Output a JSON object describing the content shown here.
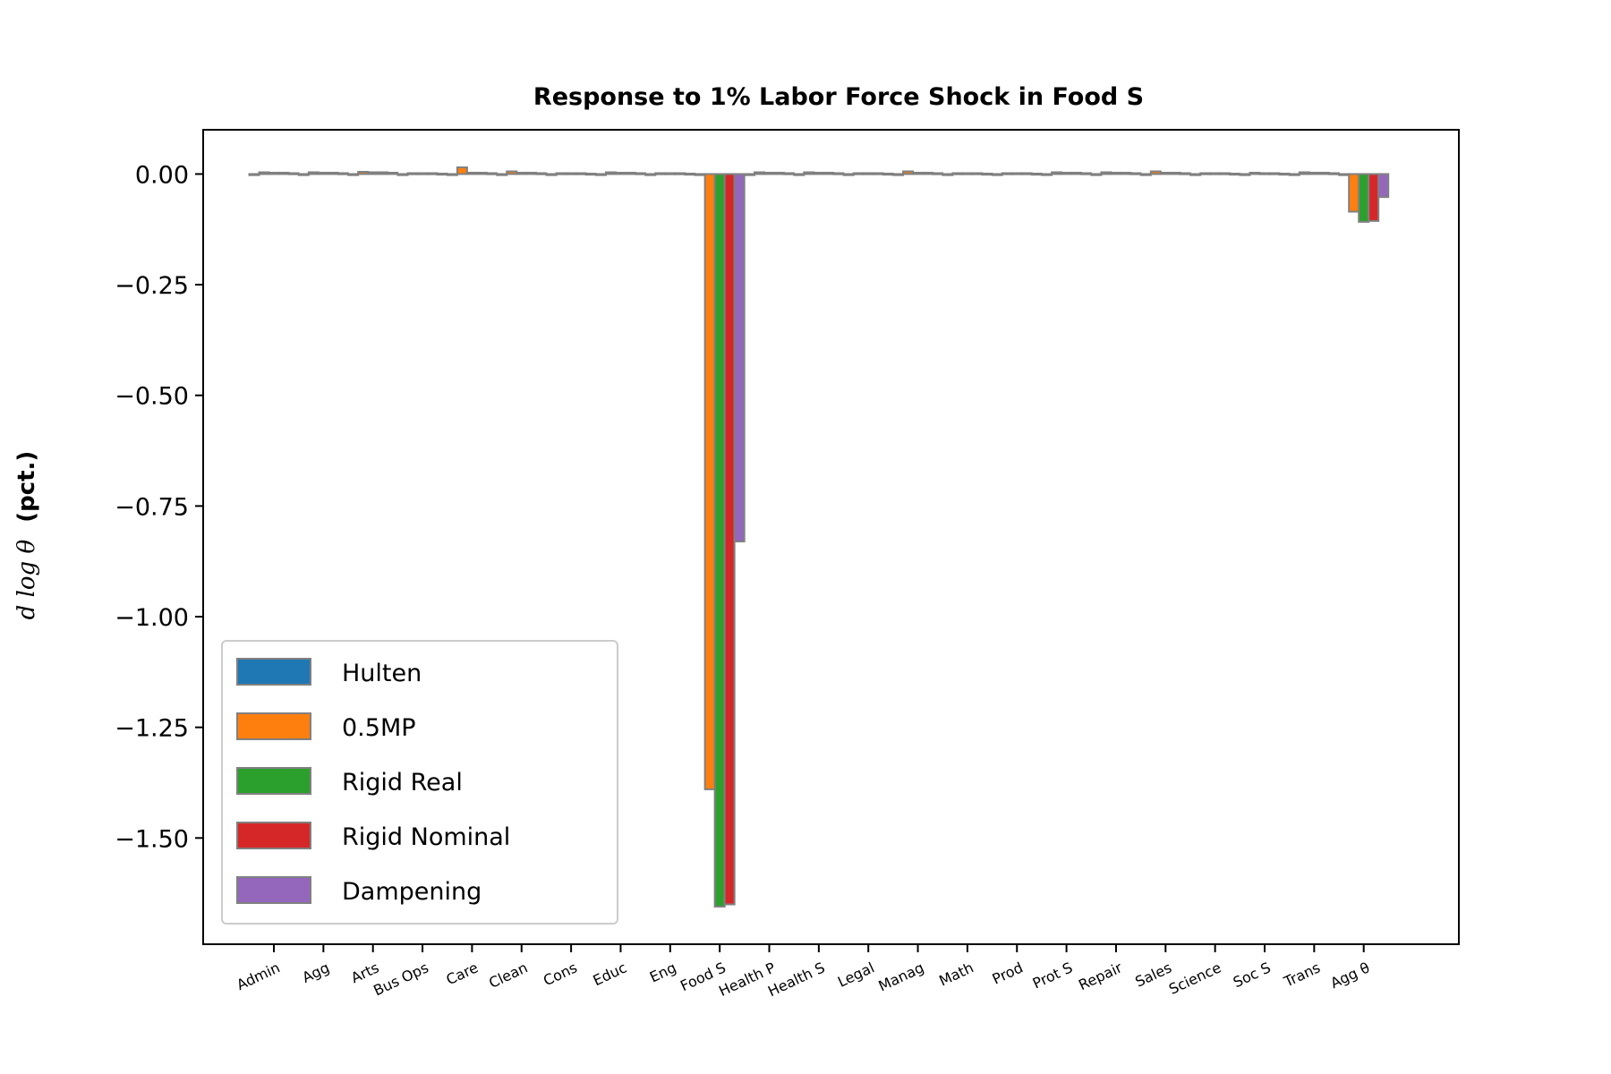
{
  "chart_data": {
    "type": "bar",
    "title": "Response to 1% Labor Force Shock in Food S",
    "ylabel": "d log θ",
    "ylabel_unit": "(pct.)",
    "xlabel": "",
    "ylim": [
      -1.74,
      0.1
    ],
    "yticks": [
      0.0,
      -0.25,
      -0.5,
      -0.75,
      -1.0,
      -1.25,
      -1.5
    ],
    "ytick_labels": [
      "0.00",
      "−0.25",
      "−0.50",
      "−0.75",
      "−1.00",
      "−1.25",
      "−1.50"
    ],
    "grid": false,
    "legend_position": "lower-left",
    "bar_edge_color": "#808080",
    "categories": [
      "Admin",
      "Agg",
      "Arts",
      "Bus Ops",
      "Care",
      "Clean",
      "Cons",
      "Educ",
      "Eng",
      "Food S",
      "Health P",
      "Health S",
      "Legal",
      "Manag",
      "Math",
      "Prod",
      "Prot S",
      "Repair",
      "Sales",
      "Science",
      "Soc S",
      "Trans",
      "Agg θ"
    ],
    "series": [
      {
        "name": "Hulten",
        "color": "#1f77b4",
        "values": [
          0,
          0,
          0,
          0,
          0,
          0,
          0,
          0,
          0,
          0,
          0,
          0,
          0,
          0,
          0,
          0,
          0,
          0,
          0,
          0,
          0,
          0,
          0
        ]
      },
      {
        "name": "0.5MP",
        "color": "#ff7f0e",
        "values": [
          0.004,
          0.004,
          0.005,
          0.002,
          0.015,
          0.006,
          0.002,
          0.004,
          0.002,
          -1.39,
          0.004,
          0.004,
          0.002,
          0.006,
          0.002,
          0.002,
          0.004,
          0.004,
          0.006,
          0.002,
          0.003,
          0.004,
          -0.085
        ]
      },
      {
        "name": "Rigid Real",
        "color": "#2ca02c",
        "values": [
          0.003,
          0.003,
          0.004,
          0.002,
          0.003,
          0.003,
          0.002,
          0.003,
          0.002,
          -1.655,
          0.003,
          0.003,
          0.002,
          0.003,
          0.002,
          0.002,
          0.003,
          0.003,
          0.003,
          0.002,
          0.002,
          0.003,
          -0.108
        ]
      },
      {
        "name": "Rigid Nominal",
        "color": "#d62728",
        "values": [
          0.003,
          0.003,
          0.004,
          0.002,
          0.003,
          0.003,
          0.002,
          0.003,
          0.002,
          -1.65,
          0.003,
          0.003,
          0.002,
          0.003,
          0.002,
          0.002,
          0.003,
          0.003,
          0.003,
          0.002,
          0.002,
          0.003,
          -0.106
        ]
      },
      {
        "name": "Dampening",
        "color": "#9467bd",
        "values": [
          0.002,
          0.002,
          0.003,
          0.001,
          0.002,
          0.002,
          0.001,
          0.002,
          0.001,
          -0.83,
          0.002,
          0.002,
          0.001,
          0.002,
          0.001,
          0.001,
          0.002,
          0.002,
          0.002,
          0.001,
          0.001,
          0.002,
          -0.052
        ]
      }
    ]
  }
}
